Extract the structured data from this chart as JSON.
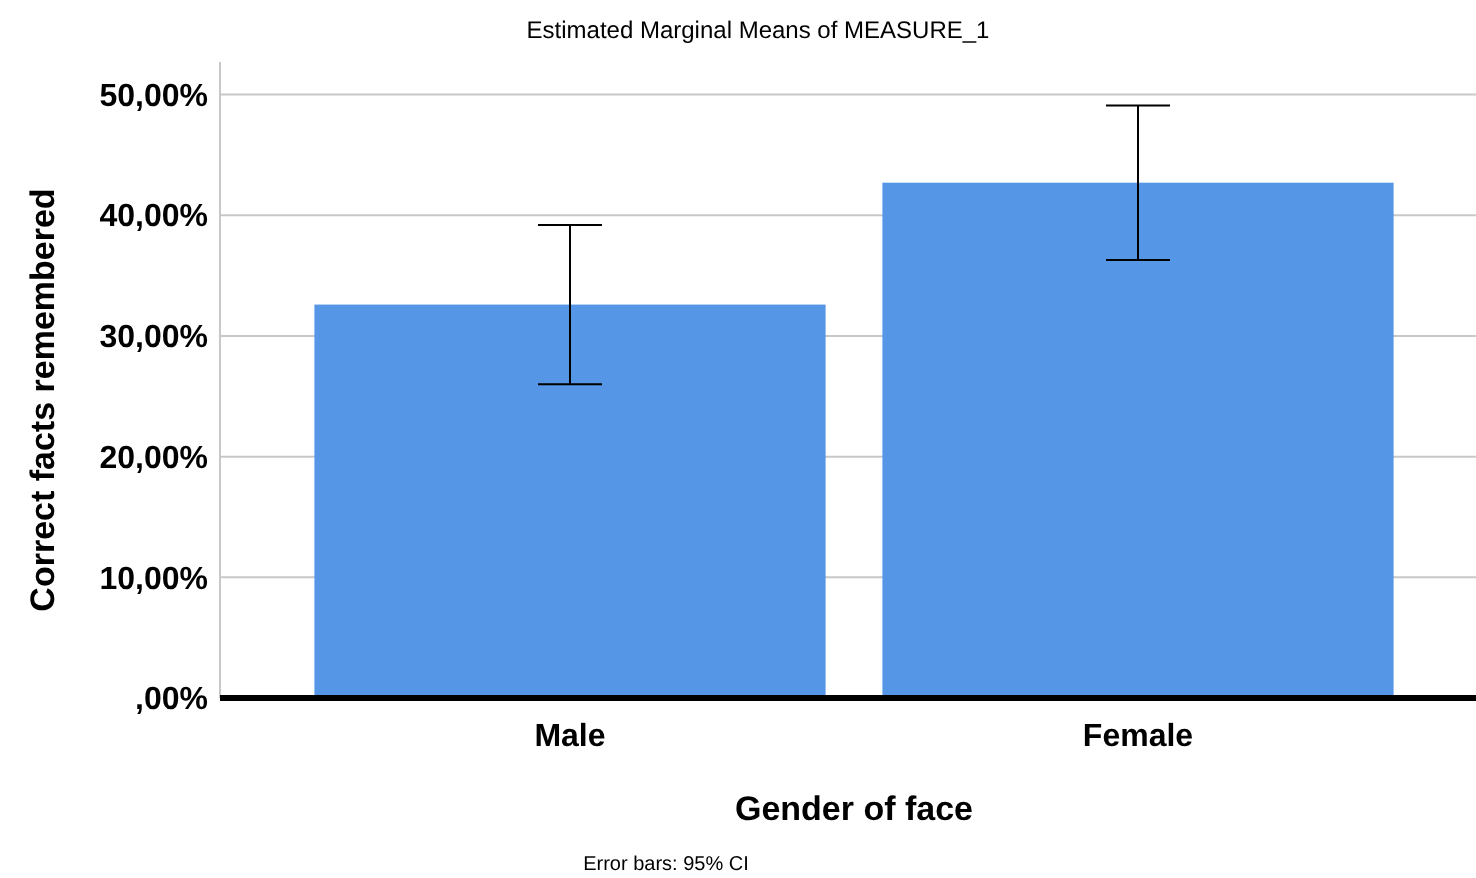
{
  "chart_data": {
    "type": "bar",
    "title": "Estimated Marginal Means of MEASURE_1",
    "xlabel": "Gender of face",
    "ylabel": "Correct facts remembered",
    "categories": [
      "Male",
      "Female"
    ],
    "values": [
      32.6,
      42.7
    ],
    "errors": [
      [
        26.0,
        39.2
      ],
      [
        36.3,
        49.1
      ]
    ],
    "color": "#5596e6",
    "ylim": [
      0,
      52.7
    ],
    "yticks": [
      {
        "value": 0,
        "label": ",00%"
      },
      {
        "value": 10,
        "label": "10,00%"
      },
      {
        "value": 20,
        "label": "20,00%"
      },
      {
        "value": 30,
        "label": "30,00%"
      },
      {
        "value": 40,
        "label": "40,00%"
      },
      {
        "value": 50,
        "label": "50,00%"
      }
    ],
    "grid": "y",
    "annotations": [
      "Error bars: 95% CI"
    ]
  }
}
